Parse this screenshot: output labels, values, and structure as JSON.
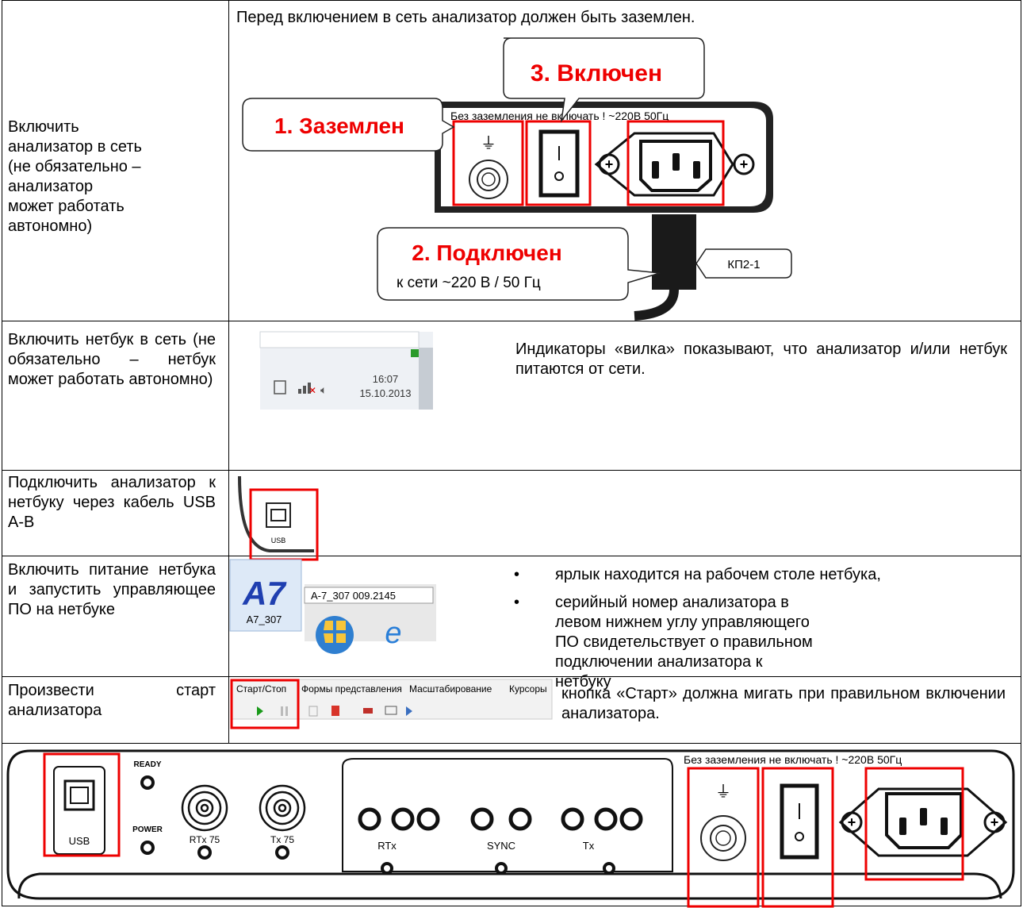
{
  "rows": [
    {
      "instruction": "Включить анализатор в сеть (не обязательно – анализатор может работать автономно)",
      "note": "Перед включением в сеть анализатор должен быть заземлен.",
      "figure": {
        "panel_label": "Без заземления не включать ! ~220В 50Гц",
        "callouts": [
          "1. Заземлен",
          "3. Включен",
          "2. Подключен"
        ],
        "callout_sub": "к сети ~220 В / 50 Гц",
        "cable_tag": "КП2-1"
      }
    },
    {
      "instruction": "Включить нетбук в сеть (не обязательно – нетбук может работать автономно)",
      "note": "Индикаторы «вилка» показывают, что анализатор и/или нетбук питаются от сети.",
      "figure": {
        "time": "16:07",
        "date": "15.10.2013"
      }
    },
    {
      "instruction": "Подключить анализатор к нетбуку через кабель USB A-B",
      "figure": {
        "port_label": "USB"
      }
    },
    {
      "instruction": "Включить питание нетбука и запустить управляющее ПО на нетбуке",
      "bullets": [
        "ярлык находится на рабочем столе нетбука,",
        "серийный номер анализатора в левом нижнем углу управляющего ПО свидетельствует о правильном подключении анализатора к нетбуку"
      ],
      "figure": {
        "icon_label": "A7_307",
        "taskbar_label": "A-7_307 009.2145"
      }
    },
    {
      "instruction": "Произвести старт анализатора",
      "note": "кнопка «Старт» должна мигать при правильном включении анализатора.",
      "figure": {
        "tabs": [
          "Старт/Стоп",
          "Формы представления",
          "Масштабирование",
          "Курсоры"
        ]
      }
    }
  ],
  "panel": {
    "usb": "USB",
    "ready": "READY",
    "power": "POWER",
    "rtx75": "RTx 75",
    "tx75": "Tx 75",
    "rtx": "RTx",
    "sync": "SYNC",
    "tx": "Tx",
    "warning": "Без заземления не включать ! ~220В 50Гц"
  }
}
